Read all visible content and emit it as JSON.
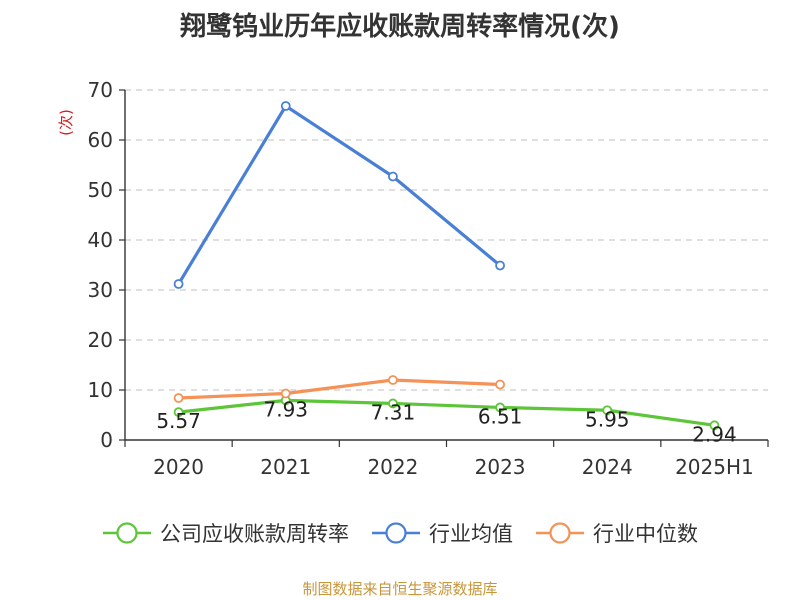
{
  "title": "翔鹭钨业历年应收账款周转率情况(次)",
  "source": "制图数据来自恒生聚源数据库",
  "colors": {
    "grid": "#cccccc",
    "axis": "#333333",
    "tick_text": "#333333"
  },
  "chart_data": {
    "type": "line",
    "title": "翔鹭钨业历年应收账款周转率情况(次)",
    "ylabel": "(次)",
    "xlabel": "",
    "categories": [
      "2020",
      "2021",
      "2022",
      "2023",
      "2024",
      "2025H1"
    ],
    "yticks": [
      0,
      10,
      20,
      30,
      40,
      50,
      60,
      70
    ],
    "ylim": [
      0,
      70
    ],
    "grid": true,
    "legend_position": "bottom",
    "series": [
      {
        "name": "公司应收账款周转率",
        "color": "#5cc638",
        "values": [
          5.57,
          7.93,
          7.31,
          6.51,
          5.95,
          2.94
        ],
        "labels": [
          "5.57",
          "7.93",
          "7.31",
          "6.51",
          "5.95",
          "2.94"
        ]
      },
      {
        "name": "行业均值",
        "color": "#4a7fd6",
        "values": [
          31.2,
          66.8,
          52.7,
          34.9,
          null,
          null
        ]
      },
      {
        "name": "行业中位数",
        "color": "#f49257",
        "values": [
          8.4,
          9.3,
          12.0,
          11.1,
          null,
          null
        ]
      }
    ]
  }
}
